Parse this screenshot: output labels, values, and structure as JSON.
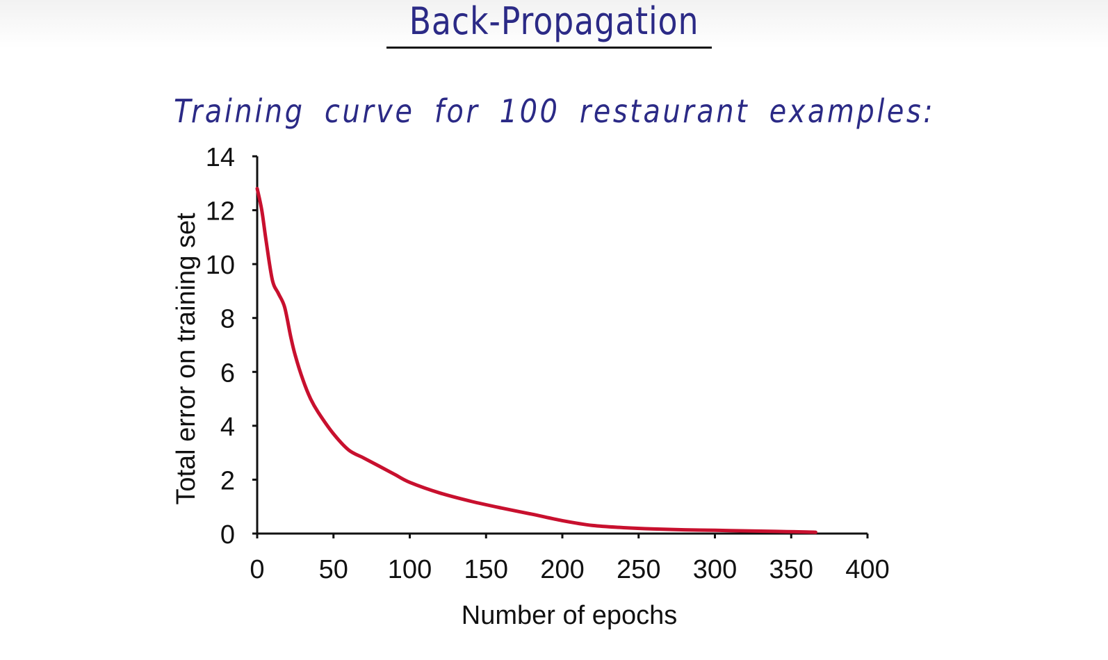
{
  "slide": {
    "title": "Back-Propagation",
    "subtitle": "Training curve for 100 restaurant examples:"
  },
  "chart_data": {
    "type": "line",
    "xlabel": "Number of epochs",
    "ylabel": "Total error on training set",
    "xlim": [
      0,
      400
    ],
    "ylim": [
      0,
      14
    ],
    "xticks": [
      0,
      50,
      100,
      150,
      200,
      250,
      300,
      350,
      400
    ],
    "yticks": [
      0,
      2,
      4,
      6,
      8,
      10,
      12,
      14
    ],
    "grid": false,
    "line_color": "#c8102e",
    "series": [
      {
        "x": [
          0,
          3,
          6,
          10,
          14,
          18,
          22,
          25,
          30,
          35,
          40,
          50,
          60,
          70,
          80,
          90,
          100,
          120,
          140,
          160,
          180,
          200,
          220,
          240,
          260,
          280,
          300,
          320,
          340,
          360,
          366
        ],
        "y": [
          12.8,
          12.0,
          10.8,
          9.4,
          8.9,
          8.4,
          7.3,
          6.6,
          5.7,
          5.0,
          4.5,
          3.7,
          3.1,
          2.8,
          2.5,
          2.2,
          1.9,
          1.5,
          1.2,
          0.95,
          0.72,
          0.48,
          0.3,
          0.22,
          0.17,
          0.14,
          0.12,
          0.1,
          0.08,
          0.06,
          0.05
        ]
      }
    ]
  }
}
